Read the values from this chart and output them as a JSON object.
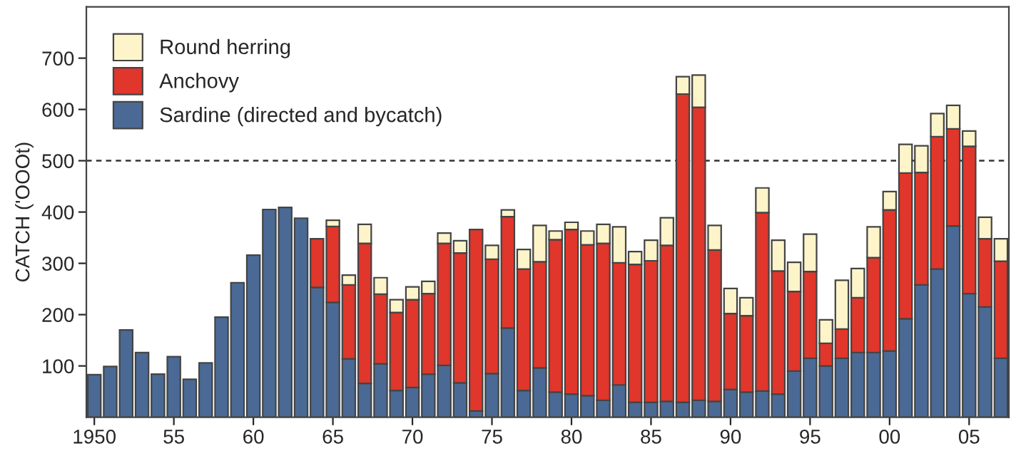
{
  "chart_data": {
    "type": "bar",
    "stacked": true,
    "ylabel": "CATCH ('OOOt)",
    "categories": [
      "1950",
      null,
      null,
      null,
      null,
      "55",
      null,
      null,
      null,
      null,
      "60",
      null,
      null,
      null,
      null,
      "65",
      null,
      null,
      null,
      null,
      "70",
      null,
      null,
      null,
      null,
      "75",
      null,
      null,
      null,
      null,
      "80",
      null,
      null,
      null,
      null,
      "85",
      null,
      null,
      null,
      null,
      "90",
      null,
      null,
      null,
      null,
      "95",
      null,
      null,
      null,
      null,
      "00",
      null,
      null,
      null,
      null,
      "05",
      null,
      null
    ],
    "series": [
      {
        "name": "Sardine (directed and bycatch)",
        "color": "#4a6a95",
        "values": [
          83,
          99,
          170,
          126,
          84,
          118,
          74,
          106,
          195,
          262,
          316,
          405,
          409,
          388,
          253,
          224,
          114,
          66,
          104,
          52,
          58,
          84,
          101,
          67,
          12,
          85,
          174,
          52,
          96,
          49,
          45,
          42,
          33,
          63,
          29,
          29,
          31,
          29,
          33,
          31,
          54,
          49,
          51,
          45,
          90,
          115,
          100,
          115,
          126,
          126,
          129,
          192,
          258,
          289,
          373,
          241,
          215,
          115
        ]
      },
      {
        "name": "Anchovy",
        "color": "#e0362b",
        "values": [
          null,
          null,
          null,
          null,
          null,
          null,
          null,
          null,
          null,
          null,
          null,
          null,
          null,
          null,
          95,
          148,
          144,
          273,
          136,
          152,
          171,
          157,
          238,
          253,
          354,
          223,
          217,
          237,
          207,
          297,
          321,
          294,
          306,
          238,
          269,
          276,
          304,
          601,
          571,
          295,
          148,
          149,
          348,
          240,
          155,
          169,
          44,
          57,
          107,
          185,
          275,
          284,
          219,
          258,
          189,
          287,
          133,
          189
        ]
      },
      {
        "name": "Round herring",
        "color": "#fdf5c9",
        "values": [
          null,
          null,
          null,
          null,
          null,
          null,
          null,
          null,
          null,
          null,
          null,
          null,
          null,
          null,
          null,
          12,
          19,
          37,
          32,
          25,
          25,
          24,
          20,
          24,
          null,
          27,
          13,
          38,
          71,
          17,
          14,
          27,
          37,
          70,
          25,
          40,
          54,
          34,
          63,
          48,
          49,
          35,
          48,
          60,
          57,
          73,
          46,
          95,
          57,
          60,
          36,
          56,
          52,
          45,
          46,
          30,
          42,
          44
        ]
      }
    ],
    "ylim": [
      0,
      800
    ],
    "yticks": [
      100,
      200,
      300,
      400,
      500,
      600,
      700
    ],
    "ref_lines": [
      {
        "axis": "y",
        "value": 500,
        "color": "#333333",
        "line_style": "dashed"
      }
    ],
    "legend": "top left",
    "grid": false
  }
}
